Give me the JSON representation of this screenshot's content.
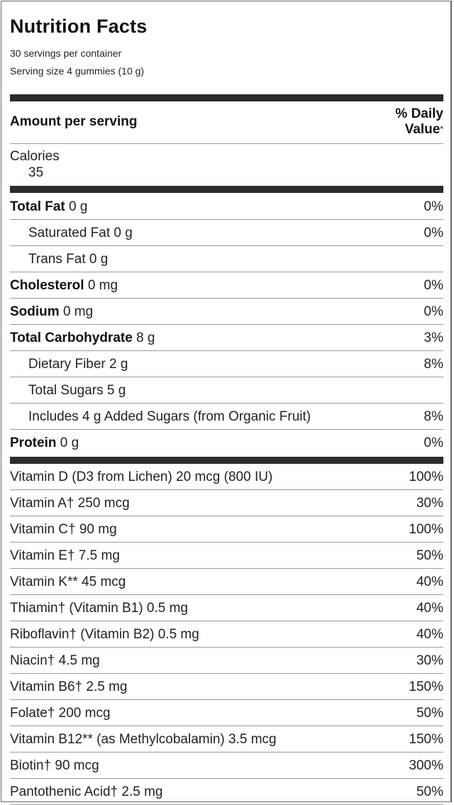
{
  "label": {
    "title": "Nutrition Facts",
    "servings_per_container": "30 servings per container",
    "serving_size": "Serving size 4 gummies (10 g)",
    "amount_per_serving": "Amount per serving",
    "daily_value_line1": "% Daily",
    "daily_value_line2": "Value",
    "daily_value_mark": "*",
    "calories_label": "Calories",
    "calories_value": "35"
  },
  "nutrients": [
    {
      "name": "Total Fat",
      "amount": "0 g",
      "pct": "0%",
      "bold": true,
      "indent": false
    },
    {
      "name": "Saturated Fat",
      "amount": "0 g",
      "pct": "0%",
      "bold": false,
      "indent": true
    },
    {
      "name": "Trans Fat",
      "amount": "0 g",
      "pct": "",
      "bold": false,
      "indent": true
    },
    {
      "name": "Cholesterol",
      "amount": "0 mg",
      "pct": "0%",
      "bold": true,
      "indent": false
    },
    {
      "name": "Sodium",
      "amount": "0 mg",
      "pct": "0%",
      "bold": true,
      "indent": false
    },
    {
      "name": "Total Carbohydrate",
      "amount": "8 g",
      "pct": "3%",
      "bold": true,
      "indent": false
    },
    {
      "name": "Dietary Fiber",
      "amount": "2 g",
      "pct": "8%",
      "bold": false,
      "indent": true
    },
    {
      "name": "Total Sugars",
      "amount": "5 g",
      "pct": "",
      "bold": false,
      "indent": true
    },
    {
      "name": "Includes 4 g Added Sugars (from Organic Fruit)",
      "amount": "",
      "pct": "8%",
      "bold": false,
      "indent": true
    },
    {
      "name": "Protein",
      "amount": "0 g",
      "pct": "0%",
      "bold": true,
      "indent": false
    }
  ],
  "vitamins": [
    {
      "text": "Vitamin D (D3 from Lichen) 20 mcg (800 IU)",
      "pct": "100%"
    },
    {
      "text": "Vitamin A† 250 mcg",
      "pct": "30%"
    },
    {
      "text": "Vitamin C† 90 mg",
      "pct": "100%"
    },
    {
      "text": "Vitamin E† 7.5 mg",
      "pct": "50%"
    },
    {
      "text": "Vitamin K** 45 mcg",
      "pct": "40%"
    },
    {
      "text": "Thiamin† (Vitamin B1) 0.5 mg",
      "pct": "40%"
    },
    {
      "text": "Riboflavin† (Vitamin B2) 0.5 mg",
      "pct": "40%"
    },
    {
      "text": "Niacin† 4.5 mg",
      "pct": "30%"
    },
    {
      "text": "Vitamin B6† 2.5 mg",
      "pct": "150%"
    },
    {
      "text": "Folate† 200 mcg",
      "pct": "50%"
    },
    {
      "text": "Vitamin B12** (as Methylcobalamin) 3.5 mcg",
      "pct": "150%"
    },
    {
      "text": "Biotin† 90 mcg",
      "pct": "300%"
    },
    {
      "text": "Pantothenic Acid† 2.5 mg",
      "pct": "50%"
    }
  ]
}
